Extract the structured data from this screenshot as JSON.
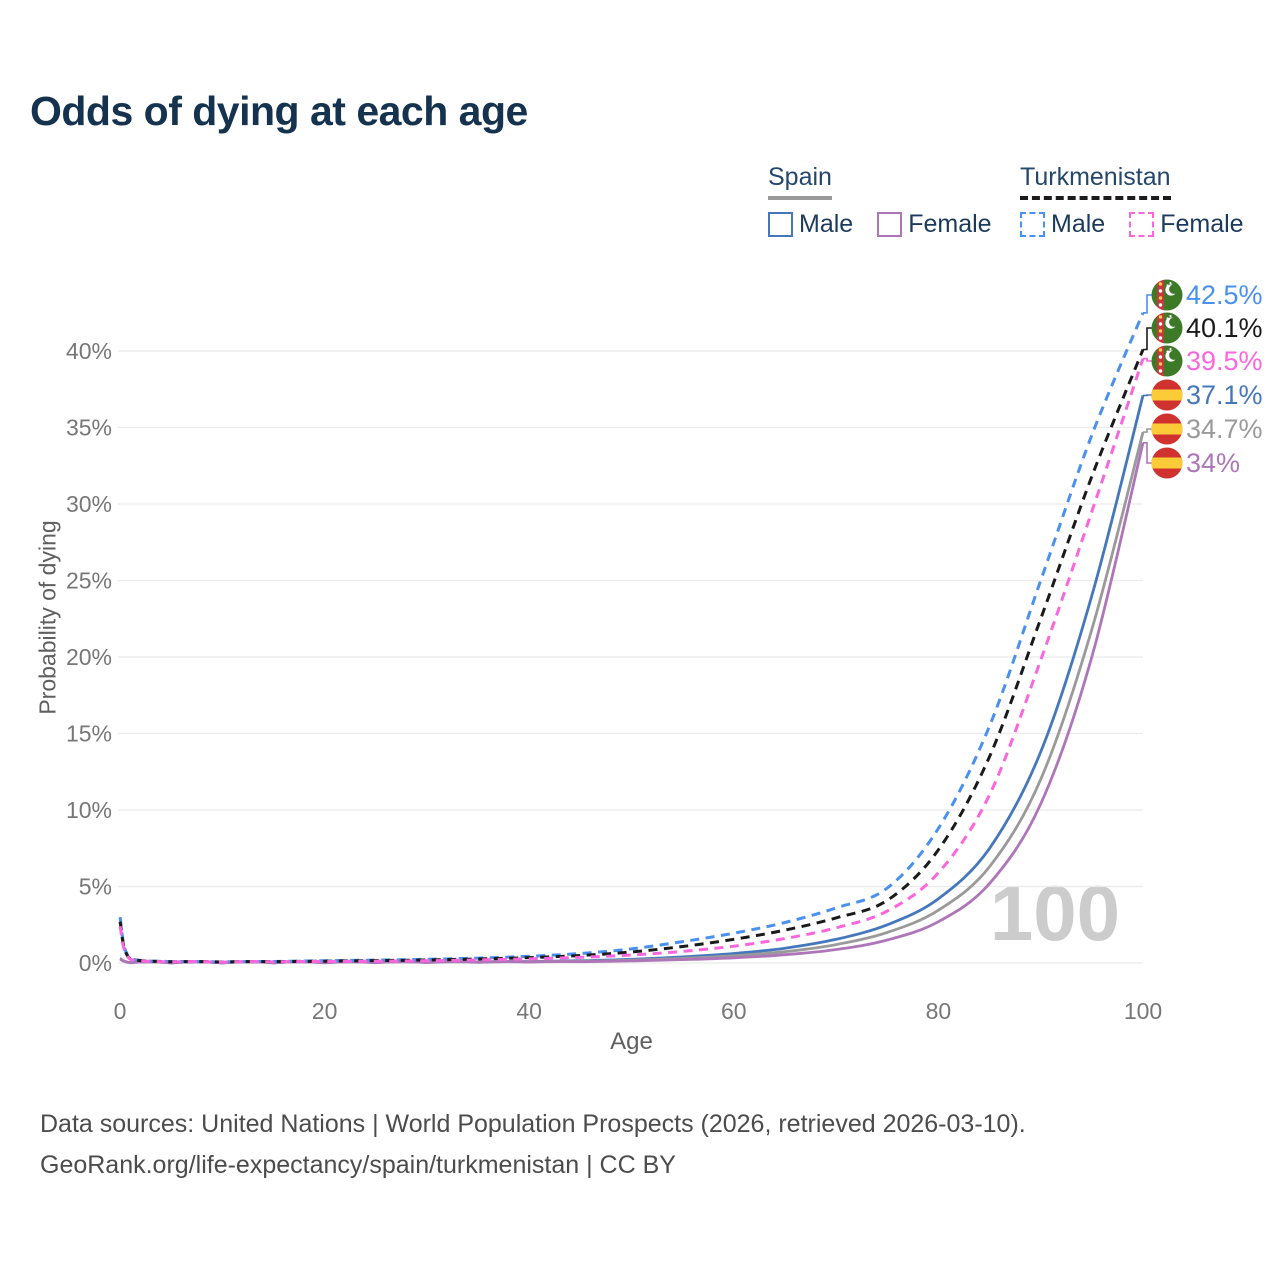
{
  "title": "Odds of dying at each age",
  "legend": {
    "groups": [
      {
        "label": "Spain",
        "line_style": "solid",
        "underline_color": "#9a9a9a",
        "items": [
          {
            "label": "Male",
            "color": "#4577bd"
          },
          {
            "label": "Female",
            "color": "#ae76b8"
          }
        ]
      },
      {
        "label": "Turkmenistan",
        "line_style": "dashed",
        "underline_color": "#1c1c1c",
        "items": [
          {
            "label": "Male",
            "color": "#4a90ee"
          },
          {
            "label": "Female",
            "color": "#f966dd"
          }
        ]
      }
    ]
  },
  "chart_data": {
    "type": "line",
    "title": "Odds of dying at each age",
    "xlabel": "Age",
    "ylabel": "Probability of dying",
    "xlim": [
      0,
      100
    ],
    "ylim_pct": [
      0,
      43.5
    ],
    "grid": "horizontal",
    "legend_position": "top-right",
    "hover_age_label": "100",
    "x_ticks": [
      {
        "v": 0,
        "label": "0"
      },
      {
        "v": 20,
        "label": "20"
      },
      {
        "v": 40,
        "label": "40"
      },
      {
        "v": 60,
        "label": "60"
      },
      {
        "v": 80,
        "label": "80"
      },
      {
        "v": 100,
        "label": "100"
      }
    ],
    "y_ticks": [
      {
        "v": 0,
        "label": "0%"
      },
      {
        "v": 5,
        "label": "5%"
      },
      {
        "v": 10,
        "label": "10%"
      },
      {
        "v": 15,
        "label": "15%"
      },
      {
        "v": 20,
        "label": "20%"
      },
      {
        "v": 25,
        "label": "25%"
      },
      {
        "v": 30,
        "label": "30%"
      },
      {
        "v": 35,
        "label": "35%"
      },
      {
        "v": 40,
        "label": "40%"
      }
    ],
    "ages": [
      0,
      1,
      5,
      10,
      15,
      20,
      25,
      30,
      35,
      40,
      45,
      50,
      55,
      60,
      65,
      70,
      75,
      80,
      85,
      90,
      95,
      100
    ],
    "series": [
      {
        "country": "Turkmenistan",
        "group": "Male",
        "line_style": "dashed",
        "color": "#4a90ee",
        "flag": "turkmenistan",
        "end_label": "42.5%",
        "values_pct": [
          3.0,
          0.3,
          0.09,
          0.07,
          0.1,
          0.15,
          0.19,
          0.24,
          0.32,
          0.44,
          0.62,
          0.92,
          1.4,
          1.95,
          2.65,
          3.6,
          4.9,
          8.8,
          15.5,
          25.0,
          34.5,
          42.5
        ]
      },
      {
        "country": "Turkmenistan",
        "group": "All",
        "line_style": "dashed",
        "color": "#1a1a1a",
        "flag": "turkmenistan",
        "end_label": "40.1%",
        "values_pct": [
          2.7,
          0.27,
          0.08,
          0.06,
          0.085,
          0.12,
          0.155,
          0.195,
          0.26,
          0.35,
          0.49,
          0.72,
          1.08,
          1.55,
          2.15,
          2.95,
          4.1,
          7.4,
          13.5,
          22.5,
          31.8,
          40.1
        ]
      },
      {
        "country": "Turkmenistan",
        "group": "Female",
        "line_style": "dashed",
        "color": "#f966dd",
        "flag": "turkmenistan",
        "end_label": "39.5%",
        "values_pct": [
          2.4,
          0.24,
          0.07,
          0.05,
          0.07,
          0.095,
          0.115,
          0.15,
          0.2,
          0.27,
          0.37,
          0.52,
          0.76,
          1.1,
          1.6,
          2.3,
          3.4,
          5.9,
          11.0,
          19.8,
          29.5,
          39.5
        ]
      },
      {
        "country": "Spain",
        "group": "Male",
        "line_style": "solid",
        "color": "#4577bd",
        "flag": "spain",
        "end_label": "37.1%",
        "values_pct": [
          0.3,
          0.025,
          0.009,
          0.008,
          0.015,
          0.03,
          0.04,
          0.052,
          0.07,
          0.1,
          0.15,
          0.24,
          0.4,
          0.62,
          0.97,
          1.55,
          2.5,
          4.2,
          7.5,
          13.8,
          24.0,
          37.1
        ]
      },
      {
        "country": "Spain",
        "group": "All",
        "line_style": "solid",
        "color": "#9a9a9a",
        "flag": "spain",
        "end_label": "34.7%",
        "values_pct": [
          0.27,
          0.022,
          0.008,
          0.007,
          0.012,
          0.023,
          0.031,
          0.04,
          0.055,
          0.08,
          0.12,
          0.19,
          0.3,
          0.47,
          0.74,
          1.2,
          2.0,
          3.45,
          6.3,
          12.0,
          21.8,
          34.7
        ]
      },
      {
        "country": "Spain",
        "group": "Female",
        "line_style": "solid",
        "color": "#ae76b8",
        "flag": "spain",
        "end_label": "34%",
        "values_pct": [
          0.25,
          0.02,
          0.007,
          0.006,
          0.01,
          0.016,
          0.021,
          0.028,
          0.04,
          0.058,
          0.088,
          0.14,
          0.22,
          0.34,
          0.54,
          0.88,
          1.5,
          2.7,
          5.2,
          10.4,
          20.0,
          34.0
        ]
      }
    ]
  },
  "footer": {
    "line1": "Data sources: United Nations | World Population Prospects (2026, retrieved 2026-03-10).",
    "line2": "GeoRank.org/life-expectancy/spain/turkmenistan | CC BY"
  }
}
